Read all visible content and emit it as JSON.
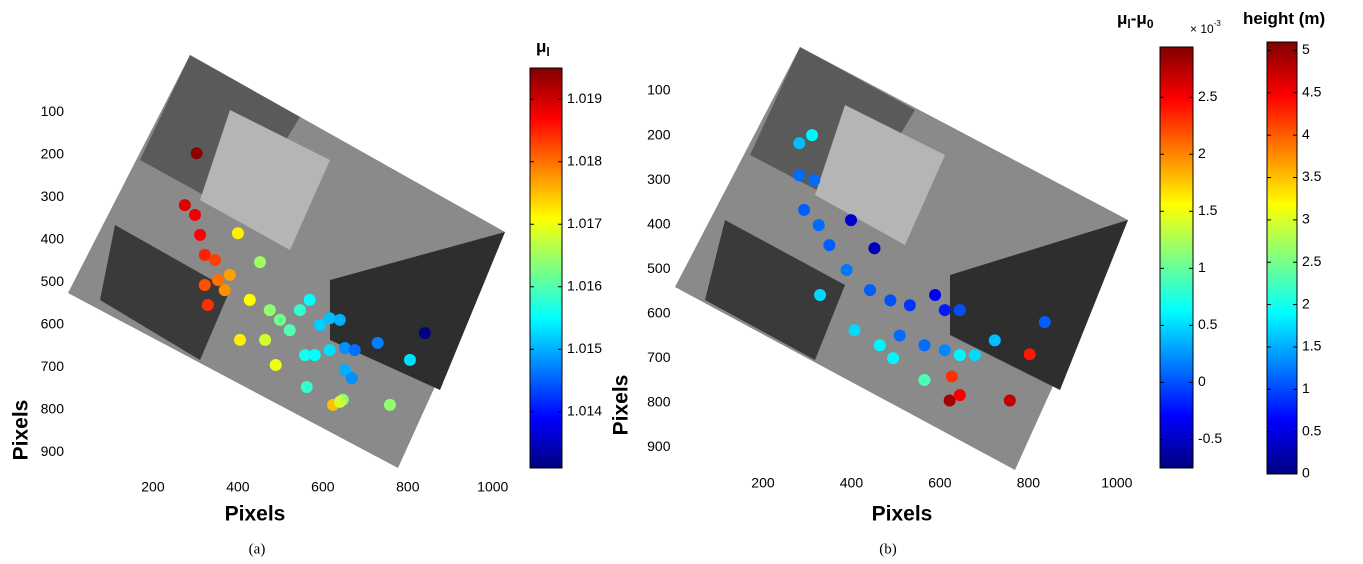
{
  "chart_data": [
    {
      "type": "scatter",
      "caption": "(a)",
      "xlabel": "Pixels",
      "ylabel": "Pixels",
      "colormap": "jet",
      "xlim": [
        0,
        1050
      ],
      "ylim": [
        960,
        0
      ],
      "xticks": [
        200,
        400,
        600,
        800,
        1000
      ],
      "yticks": [
        100,
        200,
        300,
        400,
        500,
        600,
        700,
        800,
        900
      ],
      "series": [
        {
          "x": [
            303,
            275,
            299,
            311,
            322,
            346,
            353,
            369,
            322,
            381,
            400,
            428,
            405,
            329,
            452,
            475,
            499,
            464,
            522,
            546,
            489,
            569,
            593,
            616,
            640,
            558,
            581,
            616,
            652,
            675,
            729,
            805,
            652,
            668,
            562,
            647,
            624,
            640,
            758,
            840
          ],
          "values": [
            196,
            318,
            341,
            388,
            435,
            447,
            494,
            518,
            506,
            482,
            384,
            541,
            635,
            553,
            452,
            565,
            588,
            635,
            612,
            565,
            694,
            541,
            600,
            584,
            588,
            671,
            671,
            659,
            654,
            659,
            642,
            682,
            706,
            725,
            746,
            776,
            788,
            781,
            788,
            619
          ],
          "color_values": [
            1.0194,
            1.0189,
            1.0188,
            1.0187,
            1.0185,
            1.0183,
            1.018,
            1.0178,
            1.0182,
            1.0177,
            1.0172,
            1.0171,
            1.0172,
            1.0184,
            1.0165,
            1.0164,
            1.0162,
            1.0168,
            1.016,
            1.0158,
            1.017,
            1.0155,
            1.0152,
            1.0151,
            1.015,
            1.0156,
            1.0155,
            1.0153,
            1.0148,
            1.0146,
            1.0147,
            1.0153,
            1.015,
            1.0148,
            1.0158,
            1.0163,
            1.0175,
            1.0168,
            1.0164,
            1.0131
          ]
        }
      ],
      "colorbars": [
        {
          "label": [
            "μ",
            "l"
          ],
          "clim": [
            1.0131,
            1.0195
          ],
          "ticks": [
            1.014,
            1.015,
            1.016,
            1.017,
            1.018,
            1.019
          ]
        }
      ]
    },
    {
      "type": "scatter",
      "caption": "(b)",
      "xlabel": "Pixels",
      "ylabel": "Pixels",
      "colormap": "jet",
      "xlim": [
        0,
        1050
      ],
      "ylim": [
        960,
        0
      ],
      "xticks": [
        200,
        400,
        600,
        800,
        1000
      ],
      "yticks": [
        100,
        200,
        300,
        400,
        500,
        600,
        700,
        800,
        900
      ],
      "series": [
        {
          "x": [
            311,
            282,
            282,
            316,
            293,
            326,
            399,
            350,
            452,
            389,
            329,
            442,
            488,
            532,
            589,
            611,
            645,
            407,
            464,
            509,
            565,
            611,
            645,
            679,
            724,
            494,
            565,
            837,
            803,
            627,
            622,
            645,
            758
          ],
          "values": [
            199,
            217,
            289,
            300,
            367,
            401,
            390,
            446,
            453,
            502,
            558,
            547,
            570,
            581,
            558,
            592,
            592,
            637,
            671,
            649,
            671,
            682,
            693,
            693,
            660,
            700,
            749,
            619,
            691,
            741,
            795,
            783,
            795
          ],
          "color_values": [
            0.6,
            0.4,
            0.1,
            0.1,
            0.05,
            0.1,
            -0.45,
            0.05,
            -0.55,
            0.15,
            0.5,
            0.05,
            0,
            -0.1,
            -0.35,
            -0.2,
            0,
            0.5,
            0.6,
            0.1,
            0.1,
            0.2,
            0.6,
            0.5,
            0.4,
            0.6,
            0.9,
            0.05,
            2.4,
            2.3,
            2.8,
            2.5,
            2.7
          ]
        }
      ],
      "colorbars": [
        {
          "label": [
            "μ",
            "l",
            "-μ",
            "0"
          ],
          "exponent": [
            "× 10",
            "-3"
          ],
          "clim": [
            -0.75,
            2.94
          ],
          "ticks": [
            -0.5,
            0,
            0.5,
            1,
            1.5,
            2,
            2.5
          ]
        },
        {
          "label": [
            "height (m)"
          ],
          "clim": [
            0,
            5.1
          ],
          "ticks": [
            0,
            0.5,
            1,
            1.5,
            2,
            2.5,
            3,
            3.5,
            4,
            4.5,
            5
          ]
        }
      ]
    }
  ]
}
